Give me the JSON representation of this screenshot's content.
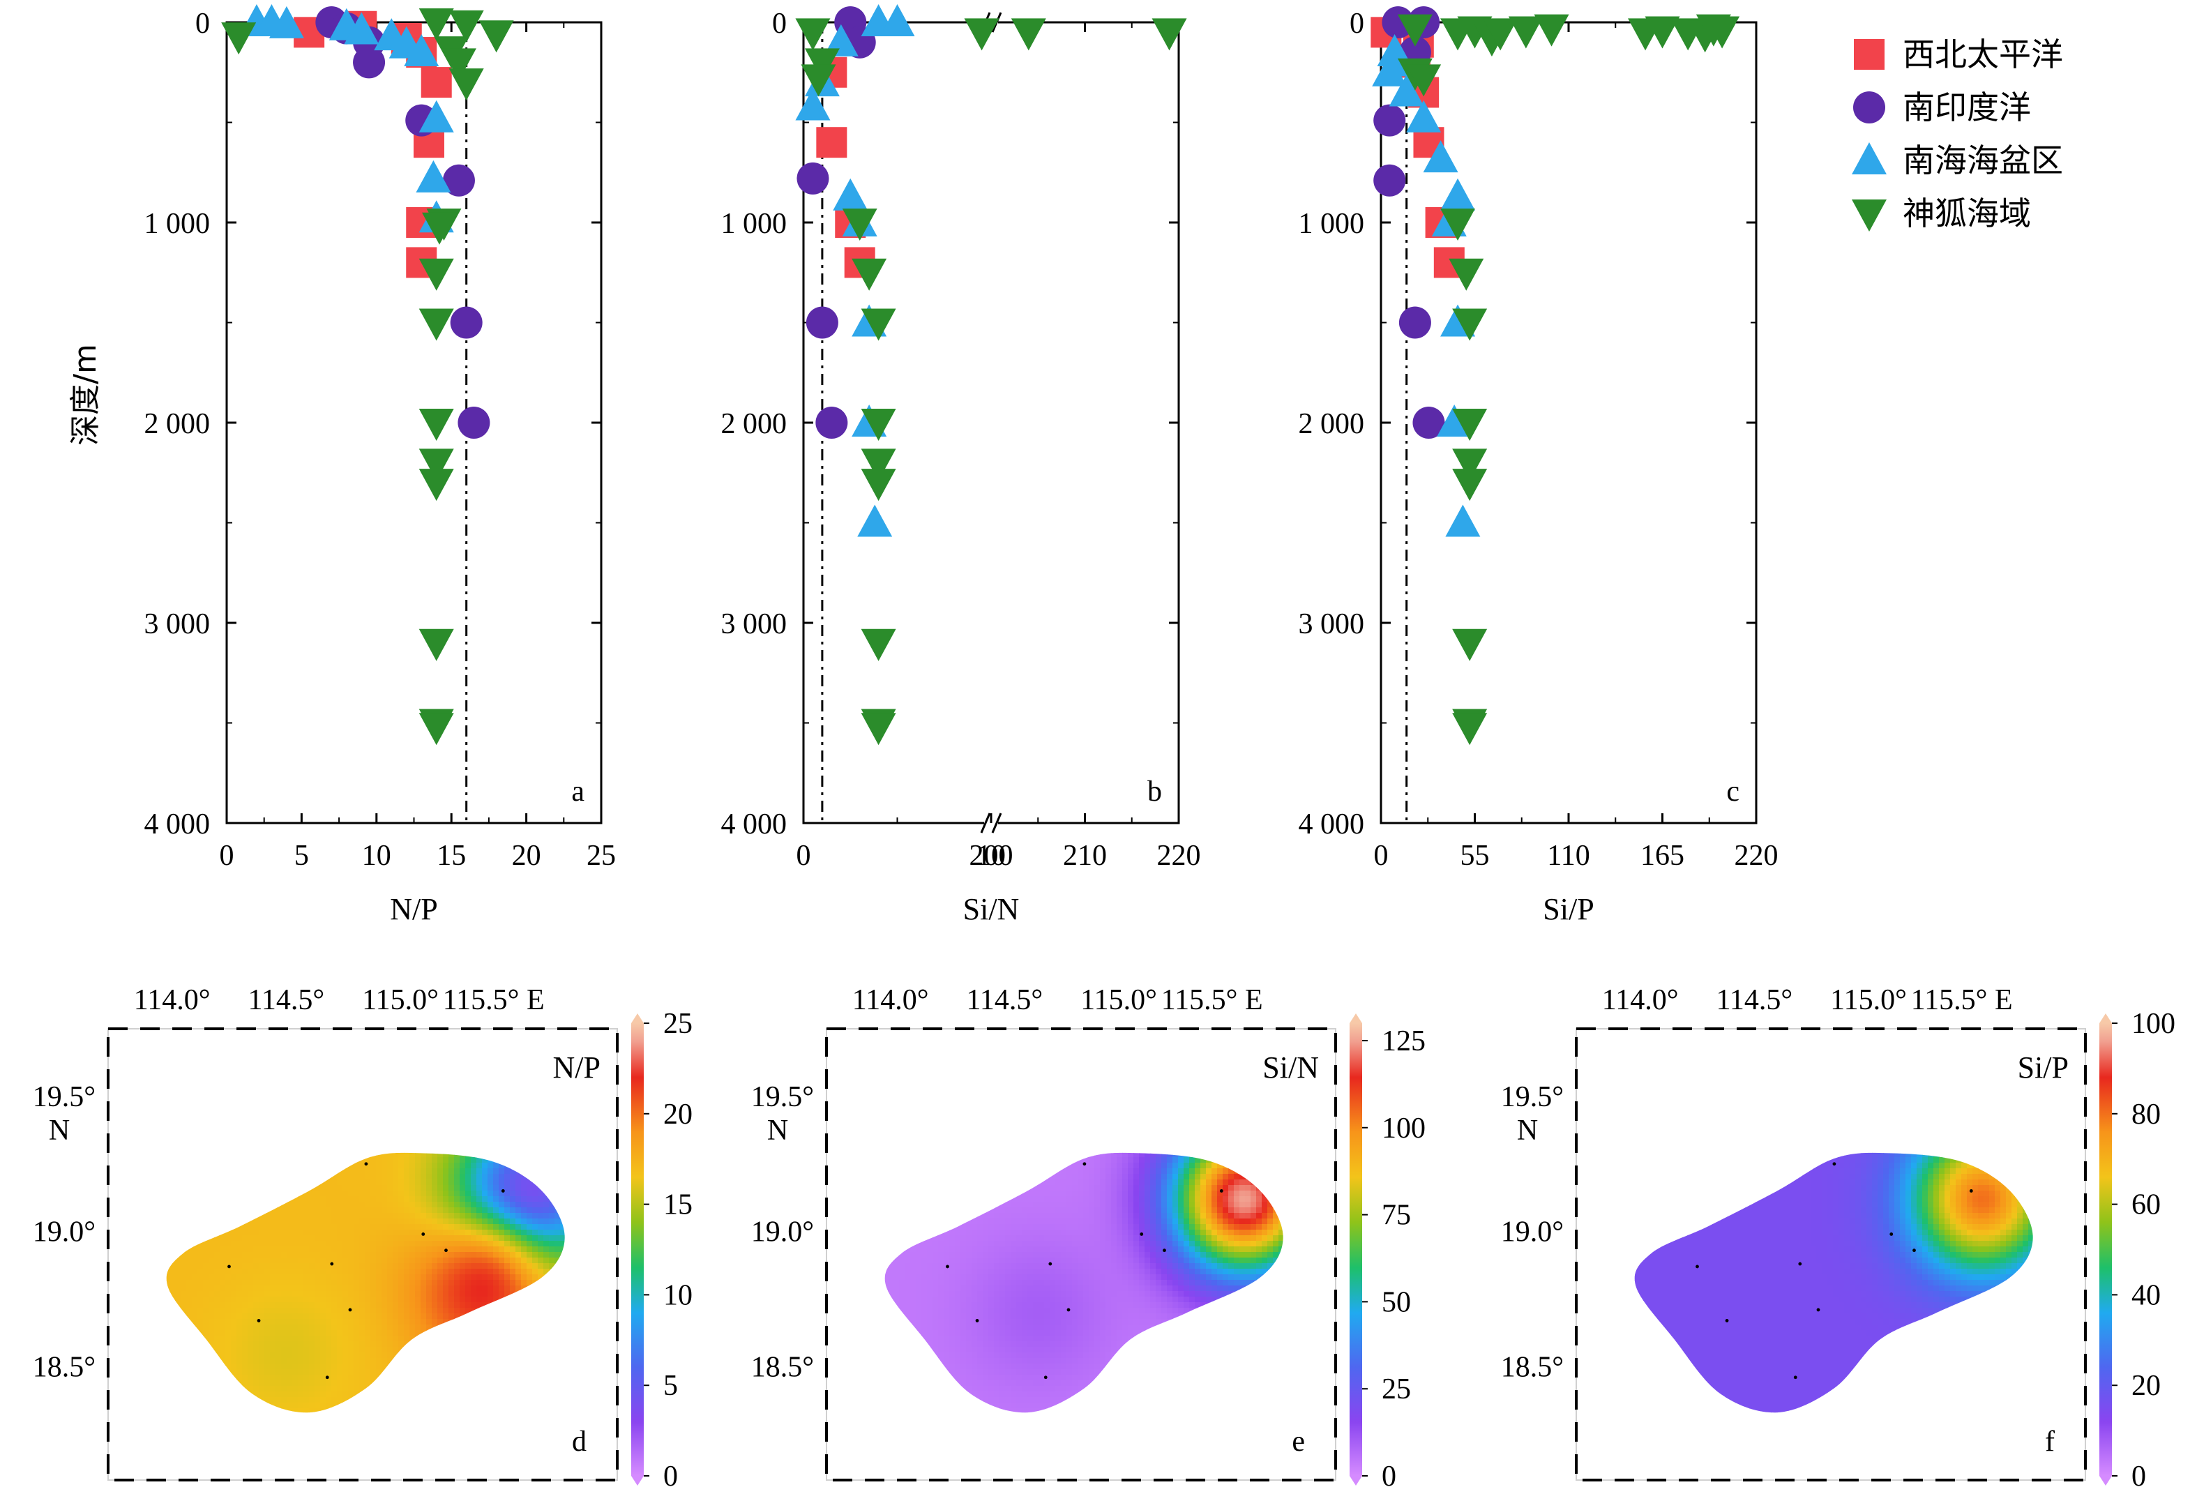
{
  "legend": [
    {
      "label": "西北太平洋",
      "marker": "square",
      "color": "#f2434b"
    },
    {
      "label": "南印度洋",
      "marker": "circle",
      "color": "#5b2aa8"
    },
    {
      "label": "南海海盆区",
      "marker": "triangle-up",
      "color": "#2fa7ea"
    },
    {
      "label": "神狐海域",
      "marker": "triangle-down",
      "color": "#2b8c2b"
    }
  ],
  "chart_data": [
    {
      "id": "a",
      "type": "scatter",
      "panel_label": "a",
      "xlabel": "N/P",
      "ylabel": "深度/m",
      "xlim": [
        0,
        25
      ],
      "ylim": [
        0,
        4000
      ],
      "y_inverted": true,
      "x_ticks": [
        "0",
        "5",
        "10",
        "15",
        "20",
        "25"
      ],
      "y_ticks": [
        "0",
        "1 000",
        "2 000",
        "3 000",
        "4 000"
      ],
      "reference_line": {
        "x": 16,
        "style": "dash-dot"
      },
      "series": [
        {
          "name": "西北太平洋",
          "points": [
            [
              5.5,
              50
            ],
            [
              9,
              20
            ],
            [
              12,
              80
            ],
            [
              13,
              150
            ],
            [
              14,
              300
            ],
            [
              13.5,
              600
            ],
            [
              13,
              1000
            ],
            [
              13,
              1200
            ]
          ]
        },
        {
          "name": "南印度洋",
          "points": [
            [
              7,
              0
            ],
            [
              8,
              30
            ],
            [
              9.5,
              100
            ],
            [
              9.5,
              200
            ],
            [
              13,
              490
            ],
            [
              15.5,
              790
            ],
            [
              16,
              1500
            ],
            [
              16.5,
              2000
            ]
          ]
        },
        {
          "name": "南海海盆区",
          "points": [
            [
              2,
              0
            ],
            [
              3,
              0
            ],
            [
              4,
              10
            ],
            [
              8,
              20
            ],
            [
              9,
              40
            ],
            [
              11,
              70
            ],
            [
              12,
              110
            ],
            [
              13,
              150
            ],
            [
              14,
              480
            ],
            [
              13.8,
              780
            ],
            [
              14,
              980
            ]
          ]
        },
        {
          "name": "神狐海域",
          "points": [
            [
              0.8,
              70
            ],
            [
              14,
              0
            ],
            [
              16,
              10
            ],
            [
              18,
              60
            ],
            [
              15,
              140
            ],
            [
              15.5,
              200
            ],
            [
              16,
              300
            ],
            [
              14.5,
              1000
            ],
            [
              14.2,
              1020
            ],
            [
              14,
              1250
            ],
            [
              14,
              1500
            ],
            [
              14,
              2000
            ],
            [
              14,
              2200
            ],
            [
              14,
              2300
            ],
            [
              14,
              3100
            ],
            [
              14,
              3500
            ],
            [
              14,
              3520
            ]
          ]
        }
      ]
    },
    {
      "id": "b",
      "type": "scatter",
      "panel_label": "b",
      "xlabel": "Si/N",
      "ylabel": "",
      "xlim": [
        0,
        220
      ],
      "axis_break": [
        10,
        200
      ],
      "ylim": [
        0,
        4000
      ],
      "y_inverted": true,
      "x_ticks": [
        "0",
        "10",
        "200",
        "210",
        "220"
      ],
      "y_ticks": [
        "0",
        "1 000",
        "2 000",
        "3 000",
        "4 000"
      ],
      "reference_line": {
        "x": 1,
        "style": "dash-dot"
      },
      "series": [
        {
          "name": "西北太平洋",
          "points": [
            [
              1.5,
              250
            ],
            [
              1.5,
              600
            ],
            [
              3,
              1200
            ],
            [
              2.5,
              1000
            ]
          ]
        },
        {
          "name": "南印度洋",
          "points": [
            [
              2.5,
              0
            ],
            [
              3,
              100
            ],
            [
              0.5,
              780
            ],
            [
              1,
              1500
            ],
            [
              1.5,
              2000
            ]
          ]
        },
        {
          "name": "南海海盆区",
          "points": [
            [
              4,
              0
            ],
            [
              5,
              0
            ],
            [
              2,
              100
            ],
            [
              1,
              300
            ],
            [
              0.5,
              420
            ],
            [
              2.5,
              870
            ],
            [
              3,
              1000
            ],
            [
              3.5,
              1500
            ],
            [
              3.5,
              2000
            ],
            [
              3.8,
              2500
            ]
          ]
        },
        {
          "name": "神狐海域",
          "points": [
            [
              0.5,
              50
            ],
            [
              9.5,
              50
            ],
            [
              204,
              50
            ],
            [
              219,
              50
            ],
            [
              1,
              200
            ],
            [
              0.8,
              280
            ],
            [
              3,
              1000
            ],
            [
              3.5,
              1250
            ],
            [
              4,
              1500
            ],
            [
              4,
              2000
            ],
            [
              4,
              2200
            ],
            [
              4,
              2300
            ],
            [
              4,
              3100
            ],
            [
              4,
              3500
            ],
            [
              4,
              3520
            ]
          ]
        }
      ]
    },
    {
      "id": "c",
      "type": "scatter",
      "panel_label": "c",
      "xlabel": "Si/P",
      "ylabel": "",
      "xlim": [
        0,
        220
      ],
      "ylim": [
        0,
        4000
      ],
      "y_inverted": true,
      "x_ticks": [
        "0",
        "55",
        "110",
        "165",
        "220"
      ],
      "y_ticks": [
        "0",
        "1 000",
        "2 000",
        "3 000",
        "4 000"
      ],
      "reference_line": {
        "x": 15,
        "style": "dash-dot"
      },
      "series": [
        {
          "name": "西北太平洋",
          "points": [
            [
              3,
              50
            ],
            [
              22,
              100
            ],
            [
              20,
              200
            ],
            [
              25,
              350
            ],
            [
              28,
              600
            ],
            [
              35,
              1000
            ],
            [
              40,
              1200
            ]
          ]
        },
        {
          "name": "南印度洋",
          "points": [
            [
              10,
              0
            ],
            [
              25,
              0
            ],
            [
              20,
              150
            ],
            [
              5,
              490
            ],
            [
              5,
              790
            ],
            [
              20,
              1500
            ],
            [
              28,
              2000
            ]
          ]
        },
        {
          "name": "南海海盆区",
          "points": [
            [
              8,
              150
            ],
            [
              10,
              200
            ],
            [
              5,
              250
            ],
            [
              15,
              350
            ],
            [
              25,
              480
            ],
            [
              35,
              680
            ],
            [
              45,
              870
            ],
            [
              40,
              1000
            ],
            [
              45,
              1500
            ],
            [
              43,
              2000
            ],
            [
              48,
              2500
            ]
          ]
        },
        {
          "name": "神狐海域",
          "points": [
            [
              20,
              30
            ],
            [
              45,
              50
            ],
            [
              55,
              40
            ],
            [
              65,
              80
            ],
            [
              70,
              50
            ],
            [
              85,
              40
            ],
            [
              100,
              30
            ],
            [
              155,
              50
            ],
            [
              165,
              40
            ],
            [
              180,
              50
            ],
            [
              190,
              60
            ],
            [
              200,
              40
            ],
            [
              195,
              30
            ],
            [
              20,
              250
            ],
            [
              25,
              280
            ],
            [
              45,
              1000
            ],
            [
              50,
              1250
            ],
            [
              52,
              1500
            ],
            [
              52,
              2000
            ],
            [
              52,
              2200
            ],
            [
              52,
              2300
            ],
            [
              52,
              3100
            ],
            [
              52,
              3500
            ],
            [
              52,
              3520
            ]
          ]
        }
      ]
    },
    {
      "id": "d",
      "type": "heatmap",
      "panel_label": "d",
      "title": "N/P",
      "x_ticks": [
        "114.0°",
        "114.5°",
        "115.0°",
        "115.5° E"
      ],
      "y_ticks": [
        "19.5°",
        "19.0°",
        "18.5°"
      ],
      "y_unit": "N",
      "colorbar_ticks": [
        "0",
        "5",
        "10",
        "15",
        "20",
        "25"
      ],
      "clim": [
        0,
        25
      ],
      "base_value": 17,
      "hotspots": [
        {
          "lon": 115.55,
          "lat": 19.12,
          "value": 2
        },
        {
          "lon": 115.35,
          "lat": 18.78,
          "value": 22
        },
        {
          "lon": 114.5,
          "lat": 18.55,
          "value": 16
        }
      ]
    },
    {
      "id": "e",
      "type": "heatmap",
      "panel_label": "e",
      "title": "Si/N",
      "x_ticks": [
        "114.0°",
        "114.5°",
        "115.0°",
        "115.5° E"
      ],
      "y_ticks": [
        "19.5°",
        "19.0°",
        "18.5°"
      ],
      "y_unit": "N",
      "colorbar_ticks": [
        "0",
        "25",
        "50",
        "75",
        "100",
        "125"
      ],
      "clim": [
        0,
        130
      ],
      "base_value": 4,
      "hotspots": [
        {
          "lon": 115.55,
          "lat": 19.12,
          "value": 125
        },
        {
          "lon": 114.65,
          "lat": 18.7,
          "value": 10
        }
      ]
    },
    {
      "id": "f",
      "type": "heatmap",
      "panel_label": "f",
      "title": "Si/P",
      "x_ticks": [
        "114.0°",
        "114.5°",
        "115.0°",
        "115.5° E"
      ],
      "y_ticks": [
        "19.5°",
        "19.0°",
        "18.5°"
      ],
      "y_unit": "N",
      "colorbar_ticks": [
        "0",
        "20",
        "40",
        "60",
        "80",
        "100"
      ],
      "clim": [
        0,
        100
      ],
      "base_value": 15,
      "hotspots": [
        {
          "lon": 115.5,
          "lat": 19.12,
          "value": 80
        }
      ]
    }
  ],
  "stations": [
    [
      114.85,
      19.25
    ],
    [
      115.45,
      19.15
    ],
    [
      115.1,
      18.99
    ],
    [
      115.2,
      18.93
    ],
    [
      114.25,
      18.87
    ],
    [
      114.7,
      18.88
    ],
    [
      114.38,
      18.67
    ],
    [
      114.78,
      18.71
    ],
    [
      114.68,
      18.46
    ]
  ]
}
